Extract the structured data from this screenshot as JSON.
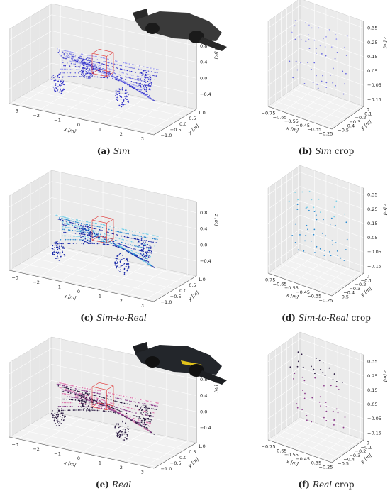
{
  "figure": {
    "panels": [
      {
        "label": "(a)",
        "name": "Sim",
        "suffix": ""
      },
      {
        "label": "(b)",
        "name": "Sim",
        "suffix": "crop"
      },
      {
        "label": "(c)",
        "name": "Sim-to-Real",
        "suffix": ""
      },
      {
        "label": "(d)",
        "name": "Sim-to-Real",
        "suffix": "crop"
      },
      {
        "label": "(e)",
        "name": "Real",
        "suffix": ""
      },
      {
        "label": "(f)",
        "name": "Real",
        "suffix": "crop"
      }
    ],
    "scene_axes": {
      "x_label": "x [m]",
      "y_label": "y [m]",
      "z_label": "z [m]",
      "x_ticks": [
        "−3",
        "−2",
        "−1",
        "0",
        "1",
        "2",
        "3"
      ],
      "y_ticks": [
        "−1.0",
        "−0.5",
        "0.0",
        "0.5",
        "1.0"
      ],
      "z_ticks": [
        "−0.4",
        "0.0",
        "0.4",
        "0.8"
      ]
    },
    "crop_axes": {
      "x_label": "x [m]",
      "y_label": "y [m]",
      "z_label": "z [m]",
      "x_ticks": [
        "−0.75",
        "−0.65",
        "−0.55",
        "−0.45",
        "−0.35",
        "−0.25"
      ],
      "y_ticks": [
        "−0.5",
        "−0.4",
        "−0.3",
        "−0.2",
        "−0.1",
        "0"
      ],
      "z_ticks": [
        "−0.15",
        "−0.05",
        "0.05",
        "0.15",
        "0.25",
        "0.35"
      ]
    }
  }
}
